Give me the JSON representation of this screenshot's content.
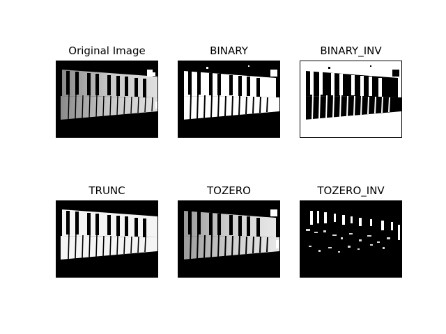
{
  "figure": {
    "panels": [
      {
        "id": "original",
        "title": "Original Image",
        "background": "#000000",
        "foreground": "#ffffff"
      },
      {
        "id": "binary",
        "title": "BINARY",
        "background": "#000000",
        "foreground": "#ffffff"
      },
      {
        "id": "binary_inv",
        "title": "BINARY_INV",
        "background": "#ffffff",
        "foreground": "#000000"
      },
      {
        "id": "trunc",
        "title": "TRUNC",
        "background": "#000000",
        "foreground": "#ffffff"
      },
      {
        "id": "tozero",
        "title": "TOZERO",
        "background": "#000000",
        "foreground": "#ffffff"
      },
      {
        "id": "tozero_inv",
        "title": "TOZERO_INV",
        "background": "#000000",
        "foreground": "#ffffff"
      }
    ]
  }
}
